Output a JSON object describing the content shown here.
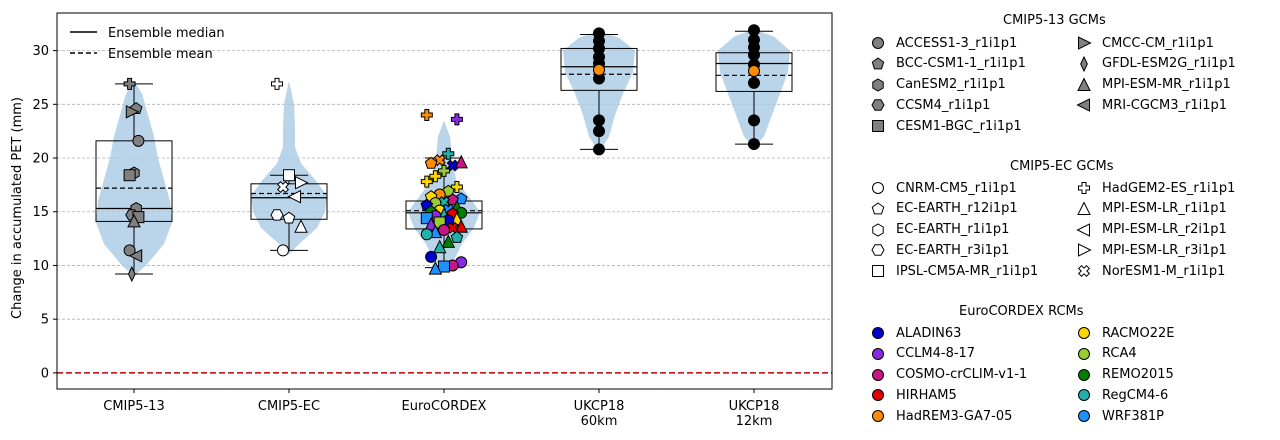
{
  "chart_data": {
    "type": "violin",
    "ylabel": "Change in accumulated PET (mm)",
    "ylim": [
      -1.5,
      33.5
    ],
    "yticks": [
      0,
      5,
      10,
      15,
      20,
      25,
      30
    ],
    "grid": "y dashed",
    "reference_line": {
      "y": 0,
      "color": "#c00000",
      "style": "dashed"
    },
    "categories": [
      "CMIP5-13",
      "CMIP5-EC",
      "EuroCORDEX",
      "UKCP18\n60km",
      "UKCP18\n12km"
    ],
    "category_lines": [
      [
        "CMIP5-13"
      ],
      [
        "CMIP5-EC"
      ],
      [
        "EuroCORDEX"
      ],
      [
        "UKCP18",
        "60km"
      ],
      [
        "UKCP18",
        "12km"
      ]
    ],
    "median_legend": "Ensemble median",
    "mean_legend": "Ensemble mean",
    "violin_color": "#a6c8e4",
    "groups": [
      {
        "name": "CMIP5-13",
        "whisker_low": 9.2,
        "q1": 14.1,
        "median": 15.3,
        "mean": 17.2,
        "q3": 21.6,
        "whisker_high": 26.9,
        "points": [
          {
            "model": "HadGEM2-ES_r1i1p1",
            "y": 26.9
          },
          {
            "model": "BCC-CSM1-1_r1i1p1",
            "y": 24.6
          },
          {
            "model": "CMCC-CM_r1i1p1",
            "y": 24.3
          },
          {
            "model": "ACCESS1-3_r1i1p1",
            "y": 21.6
          },
          {
            "model": "EC-EARTH_r1i1p1",
            "y": 18.6
          },
          {
            "model": "IPSL-CM5A-MR_r1i1p1",
            "y": 18.4
          },
          {
            "model": "CanESM2_r1i1p1",
            "y": 15.3
          },
          {
            "model": "EC-EARTH_r3i1p1",
            "y": 14.7
          },
          {
            "model": "CESM1-BGC_r1i1p1",
            "y": 14.5
          },
          {
            "model": "MPI-ESM-MR_r1i1p1",
            "y": 14.1
          },
          {
            "model": "CNRM-CM5_r1i1p1",
            "y": 11.4
          },
          {
            "model": "MRI-CGCM3_r1i1p1",
            "y": 10.9
          },
          {
            "model": "GFDL-ESM2G_r1i1p1",
            "y": 9.2
          }
        ]
      },
      {
        "name": "CMIP5-EC",
        "whisker_low": 11.4,
        "q1": 14.3,
        "median": 16.3,
        "mean": 16.7,
        "q3": 17.6,
        "whisker_high": 18.4,
        "points": [
          {
            "model": "HadGEM2-ES_r1i1p1",
            "y": 26.9
          },
          {
            "model": "IPSL-CM5A-MR_r1i1p1",
            "y": 18.4
          },
          {
            "model": "MPI-ESM-LR_r3i1p1",
            "y": 17.7
          },
          {
            "model": "NorESM1-M_r1i1p1",
            "y": 17.3
          },
          {
            "model": "MPI-ESM-LR_r2i1p1",
            "y": 16.4
          },
          {
            "model": "EC-EARTH_r3i1p1",
            "y": 14.7
          },
          {
            "model": "EC-EARTH_r12i1p1",
            "y": 14.4
          },
          {
            "model": "MPI-ESM-LR_r1i1p1",
            "y": 13.6
          },
          {
            "model": "CNRM-CM5_r1i1p1",
            "y": 11.4
          }
        ]
      },
      {
        "name": "EuroCORDEX",
        "whisker_low": 9.8,
        "q1": 13.4,
        "median": 14.9,
        "mean": 15.1,
        "q3": 16.0,
        "whisker_high": 20.0,
        "points": [
          {
            "model": "HadGEM2-ES_r1i1p1",
            "rcm": "HadREM3-GA7-05",
            "y": 24.0
          },
          {
            "model": "HadGEM2-ES_r1i1p1",
            "rcm": "CCLM4-8-17",
            "y": 23.6
          },
          {
            "model": "HadGEM2-ES_r1i1p1",
            "rcm": "RegCM4-6",
            "y": 20.4
          },
          {
            "model": "NorESM1-M_r1i1p1",
            "rcm": "HadREM3-GA7-05",
            "y": 19.8
          },
          {
            "model": "EC-EARTH_r12i1p1",
            "rcm": "HadREM3-GA7-05",
            "y": 19.5
          },
          {
            "model": "MPI-ESM-LR_r1i1p1",
            "rcm": "COSMO-crCLIM-v1-1",
            "y": 19.6
          },
          {
            "model": "NorESM1-M_r1i1p1",
            "rcm": "ALADIN63",
            "y": 19.3
          },
          {
            "model": "HadGEM2-ES_r1i1p1",
            "rcm": "RCA4",
            "y": 18.8
          },
          {
            "model": "HadGEM2-ES_r1i1p1",
            "rcm": "RACMO22E",
            "y": 18.3
          },
          {
            "model": "HadGEM2-ES_r1i1p1",
            "rcm": "RACMO22E",
            "y": 17.8
          },
          {
            "model": "HadGEM2-ES_r1i1p1",
            "rcm": "RACMO22E",
            "y": 17.3
          },
          {
            "model": "EC-EARTH_r12i1p1",
            "rcm": "RCA4",
            "y": 16.9
          },
          {
            "model": "CNRM-CM5_r1i1p1",
            "rcm": "HadREM3-GA7-05",
            "y": 16.6
          },
          {
            "model": "EC-EARTH_r12i1p1",
            "rcm": "RACMO22E",
            "y": 16.4
          },
          {
            "model": "EC-EARTH_r12i1p1",
            "rcm": "WRF381P",
            "y": 16.2
          },
          {
            "model": "EC-EARTH_r12i1p1",
            "rcm": "COSMO-crCLIM-v1-1",
            "y": 16.1
          },
          {
            "model": "NorESM1-M_r1i1p1",
            "rcm": "RegCM4-6",
            "y": 15.9
          },
          {
            "model": "CNRM-CM5_r1i1p1",
            "rcm": "RCA4",
            "y": 15.8
          },
          {
            "model": "EC-EARTH_r12i1p1",
            "rcm": "ALADIN63",
            "y": 15.6
          },
          {
            "model": "MPI-ESM-LR_r1i1p1",
            "rcm": "REMO2015",
            "y": 15.4
          },
          {
            "model": "NorESM1-M_r1i1p1",
            "rcm": "WRF381P",
            "y": 15.2
          },
          {
            "model": "CNRM-CM5_r1i1p1",
            "rcm": "RACMO22E",
            "y": 15.1
          },
          {
            "model": "EC-EARTH_r12i1p1",
            "rcm": "REMO2015",
            "y": 15.0
          },
          {
            "model": "CNRM-CM5_r1i1p1",
            "rcm": "REMO2015",
            "y": 14.9
          },
          {
            "model": "EC-EARTH_r12i1p1",
            "rcm": "HIRHAM5",
            "y": 14.8
          },
          {
            "model": "MPI-ESM-LR_r1i1p1",
            "rcm": "RegCM4-6",
            "y": 14.7
          },
          {
            "model": "CNRM-CM5_r1i1p1",
            "rcm": "CCLM4-8-17",
            "y": 14.6
          },
          {
            "model": "IPSL-CM5A-MR_r1i1p1",
            "rcm": "WRF381P",
            "y": 14.4
          },
          {
            "model": "MPI-ESM-LR_r1i1p1",
            "rcm": "RACMO22E",
            "y": 14.3
          },
          {
            "model": "CNRM-CM5_r1i1p1",
            "rcm": "ALADIN63",
            "y": 14.2
          },
          {
            "model": "IPSL-CM5A-MR_r1i1p1",
            "rcm": "RCA4",
            "y": 14.0
          },
          {
            "model": "MPI-ESM-LR_r1i1p1",
            "rcm": "CCLM4-8-17",
            "y": 13.8
          },
          {
            "model": "MPI-ESM-LR_r1i1p1",
            "rcm": "HIRHAM5",
            "y": 13.6
          },
          {
            "model": "NorESM1-M_r1i1p1",
            "rcm": "HIRHAM5",
            "y": 13.5
          },
          {
            "model": "CNRM-CM5_r1i1p1",
            "rcm": "COSMO-crCLIM-v1-1",
            "y": 13.3
          },
          {
            "model": "MPI-ESM-LR_r1i1p1",
            "rcm": "WRF381P",
            "y": 13.1
          },
          {
            "model": "CNRM-CM5_r1i1p1",
            "rcm": "RegCM4-6",
            "y": 12.9
          },
          {
            "model": "EC-EARTH_r12i1p1",
            "rcm": "RegCM4-6",
            "y": 12.6
          },
          {
            "model": "MPI-ESM-LR_r1i1p1",
            "rcm": "REMO2015",
            "y": 12.2
          },
          {
            "model": "MPI-ESM-LR_r1i1p1",
            "rcm": "RegCM4-6",
            "y": 11.7
          },
          {
            "model": "CNRM-CM5_r1i1p1",
            "rcm": "ALADIN63",
            "y": 10.8
          },
          {
            "model": "CNRM-CM5_r1i1p1",
            "rcm": "CCLM4-8-17",
            "y": 10.3
          },
          {
            "model": "CNRM-CM5_r1i1p1",
            "rcm": "COSMO-crCLIM-v1-1",
            "y": 10.0
          },
          {
            "model": "IPSL-CM5A-MR_r1i1p1",
            "rcm": "WRF381P",
            "y": 9.9
          },
          {
            "model": "MPI-ESM-LR_r1i1p1",
            "rcm": "WRF381P",
            "y": 9.7
          }
        ]
      },
      {
        "name": "UKCP18 60km",
        "whisker_low": 20.8,
        "q1": 26.3,
        "median": 28.5,
        "mean": 27.8,
        "q3": 30.2,
        "whisker_high": 31.5,
        "points": [
          31.6,
          30.9,
          30.2,
          29.4,
          28.8,
          28.2,
          27.4,
          23.5,
          22.5,
          20.8
        ],
        "highlight": {
          "y": 28.2,
          "color": "#ff8c00"
        }
      },
      {
        "name": "UKCP18 12km",
        "whisker_low": 21.3,
        "q1": 26.2,
        "median": 28.8,
        "mean": 27.7,
        "q3": 29.8,
        "whisker_high": 31.8,
        "points": [
          31.9,
          31.0,
          30.3,
          29.6,
          28.7,
          28.1,
          27.0,
          23.5,
          21.3
        ],
        "highlight": {
          "y": 28.1,
          "color": "#ff8c00"
        }
      }
    ]
  },
  "legend": {
    "cmip513": {
      "title": "CMIP5-13 GCMs",
      "entries": [
        {
          "label": "ACCESS1-3_r1i1p1",
          "marker": "circle"
        },
        {
          "label": "BCC-CSM1-1_r1i1p1",
          "marker": "pentagon"
        },
        {
          "label": "CanESM2_r1i1p1",
          "marker": "hexagon"
        },
        {
          "label": "CCSM4_r1i1p1",
          "marker": "hexagon2"
        },
        {
          "label": "CESM1-BGC_r1i1p1",
          "marker": "square"
        },
        {
          "label": "CMCC-CM_r1i1p1",
          "marker": "triangle-right"
        },
        {
          "label": "GFDL-ESM2G_r1i1p1",
          "marker": "diamond-thin"
        },
        {
          "label": "MPI-ESM-MR_r1i1p1",
          "marker": "triangle-up"
        },
        {
          "label": "MRI-CGCM3_r1i1p1",
          "marker": "triangle-left"
        }
      ],
      "fill": "#808080"
    },
    "cmip5ec": {
      "title": "CMIP5-EC GCMs",
      "entries": [
        {
          "label": "CNRM-CM5_r1i1p1",
          "marker": "circle"
        },
        {
          "label": "EC-EARTH_r12i1p1",
          "marker": "pentagon"
        },
        {
          "label": "EC-EARTH_r1i1p1",
          "marker": "hexagon"
        },
        {
          "label": "EC-EARTH_r3i1p1",
          "marker": "hexagon2"
        },
        {
          "label": "IPSL-CM5A-MR_r1i1p1",
          "marker": "square"
        },
        {
          "label": "HadGEM2-ES_r1i1p1",
          "marker": "plus"
        },
        {
          "label": "MPI-ESM-LR_r1i1p1",
          "marker": "triangle-up"
        },
        {
          "label": "MPI-ESM-LR_r2i1p1",
          "marker": "triangle-left"
        },
        {
          "label": "MPI-ESM-LR_r3i1p1",
          "marker": "triangle-right"
        },
        {
          "label": "NorESM1-M_r1i1p1",
          "marker": "x"
        }
      ],
      "fill": "#ffffff"
    },
    "rcm": {
      "title": "EuroCORDEX RCMs",
      "entries": [
        {
          "label": "ALADIN63",
          "color": "#0000cd"
        },
        {
          "label": "CCLM4-8-17",
          "color": "#8a2be2"
        },
        {
          "label": "COSMO-crCLIM-v1-1",
          "color": "#c71585"
        },
        {
          "label": "HIRHAM5",
          "color": "#e00000"
        },
        {
          "label": "HadREM3-GA7-05",
          "color": "#ff8c00"
        },
        {
          "label": "RACMO22E",
          "color": "#ffd700"
        },
        {
          "label": "RCA4",
          "color": "#9acd32"
        },
        {
          "label": "REMO2015",
          "color": "#008000"
        },
        {
          "label": "RegCM4-6",
          "color": "#20b2aa"
        },
        {
          "label": "WRF381P",
          "color": "#1e90ff"
        }
      ]
    }
  }
}
